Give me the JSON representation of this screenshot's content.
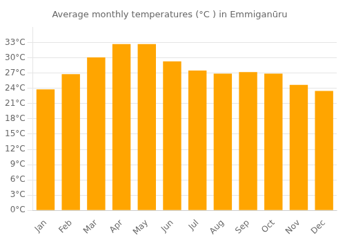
{
  "chart_data": {
    "type": "bar",
    "title": "Average monthly temperatures (°C ) in Emmiganūru",
    "categories": [
      "Jan",
      "Feb",
      "Mar",
      "Apr",
      "May",
      "Jun",
      "Jul",
      "Aug",
      "Sep",
      "Oct",
      "Nov",
      "Dec"
    ],
    "values": [
      23.8,
      26.8,
      30.1,
      32.7,
      32.7,
      29.3,
      27.5,
      26.9,
      27.2,
      26.9,
      24.7,
      23.5
    ],
    "color": "#FFA500",
    "ylim": [
      0,
      36
    ],
    "yticks": [
      {
        "value": 0,
        "label": "0°C"
      },
      {
        "value": 3,
        "label": "3°C"
      },
      {
        "value": 6,
        "label": "6°C"
      },
      {
        "value": 9,
        "label": "9°C"
      },
      {
        "value": 12,
        "label": "12°C"
      },
      {
        "value": 15,
        "label": "15°C"
      },
      {
        "value": 18,
        "label": "18°C"
      },
      {
        "value": 21,
        "label": "21°C"
      },
      {
        "value": 24,
        "label": "24°C"
      },
      {
        "value": 27,
        "label": "27°C"
      },
      {
        "value": 30,
        "label": "30°C"
      },
      {
        "value": 33,
        "label": "33°C"
      }
    ],
    "grid": true
  }
}
